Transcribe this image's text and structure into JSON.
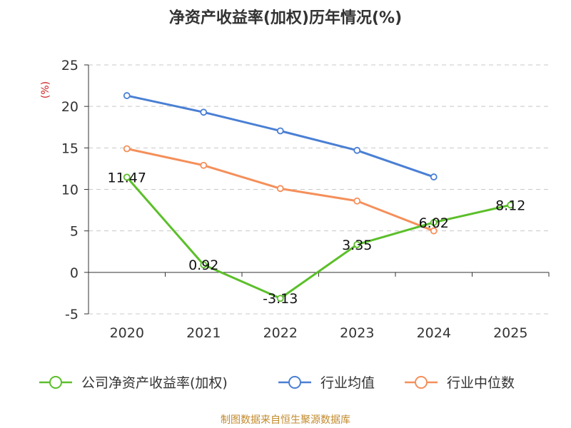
{
  "chart_data": {
    "type": "line",
    "title": "净资产收益率(加权)历年情况(%)",
    "ylabel": "(%)",
    "categories": [
      "2020",
      "2021",
      "2022",
      "2023",
      "2024",
      "2025"
    ],
    "ylim": [
      -5,
      25
    ],
    "yticks": [
      "-5",
      "0",
      "5",
      "10",
      "15",
      "20",
      "25"
    ],
    "grid": "horizontal dashed",
    "legend_position": "bottom",
    "series": [
      {
        "name": "公司净资产收益率(加权)",
        "color": "#5bbf2a",
        "values": [
          11.47,
          0.92,
          -3.13,
          3.35,
          6.02,
          8.12
        ],
        "data_labels": [
          "11.47",
          "0.92",
          "-3.13",
          "3.35",
          "6.02",
          "8.12"
        ]
      },
      {
        "name": "行业均值",
        "color": "#4a7fd4",
        "values": [
          21.3,
          19.3,
          17.05,
          14.7,
          11.5,
          null
        ]
      },
      {
        "name": "行业中位数",
        "color": "#f58f5a",
        "values": [
          14.9,
          12.9,
          10.1,
          8.6,
          5.0,
          null
        ]
      }
    ]
  },
  "source_text": "制图数据来自恒生聚源数据库",
  "colors": {
    "ylabel": "#cc2222",
    "source": "#c28a2c",
    "grid": "#c8c8c8",
    "axis": "#333333"
  }
}
